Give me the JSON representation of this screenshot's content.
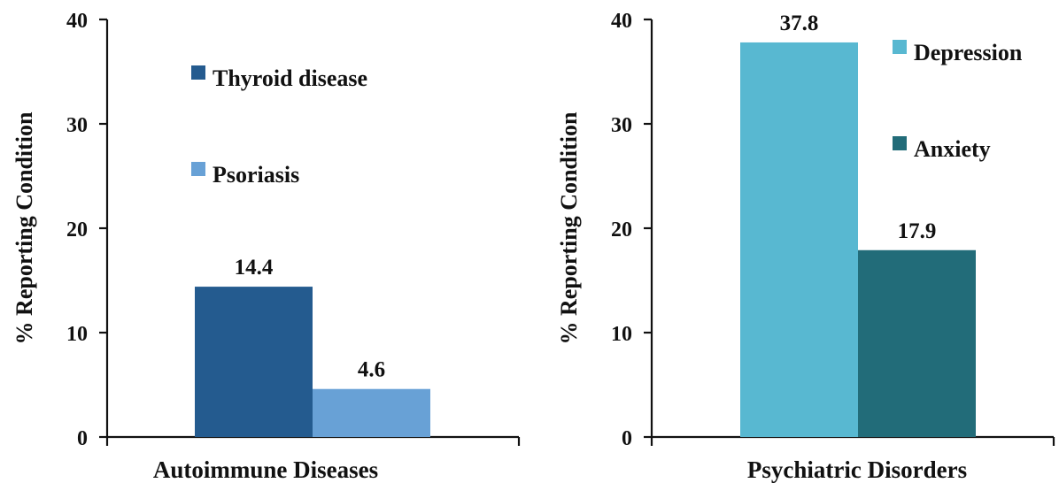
{
  "chart_data": [
    {
      "type": "bar",
      "categories": [
        "Autoimmune Diseases"
      ],
      "series": [
        {
          "name": "Thyroid disease",
          "values": [
            14.4
          ],
          "color": "#245b8f"
        },
        {
          "name": "Psoriasis",
          "values": [
            4.6
          ],
          "color": "#68a1d6"
        }
      ],
      "data_labels": [
        "14.4",
        "4.6"
      ],
      "xlabel": "Autoimmune Diseases",
      "ylabel": "% Reporting Condition",
      "ylim": [
        0,
        40
      ],
      "yticks": [
        "0",
        "10",
        "20",
        "30",
        "40"
      ],
      "grid": false,
      "legend": "inside-top"
    },
    {
      "type": "bar",
      "categories": [
        "Psychiatric Disorders"
      ],
      "series": [
        {
          "name": "Depression",
          "values": [
            37.8
          ],
          "color": "#58b8d1"
        },
        {
          "name": "Anxiety",
          "values": [
            17.9
          ],
          "color": "#226c79"
        }
      ],
      "data_labels": [
        "37.8",
        "17.9"
      ],
      "xlabel": "Psychiatric Disorders",
      "ylabel": "% Reporting Condition",
      "ylim": [
        0,
        40
      ],
      "yticks": [
        "0",
        "10",
        "20",
        "30",
        "40"
      ],
      "grid": false,
      "legend": "top-right"
    }
  ]
}
